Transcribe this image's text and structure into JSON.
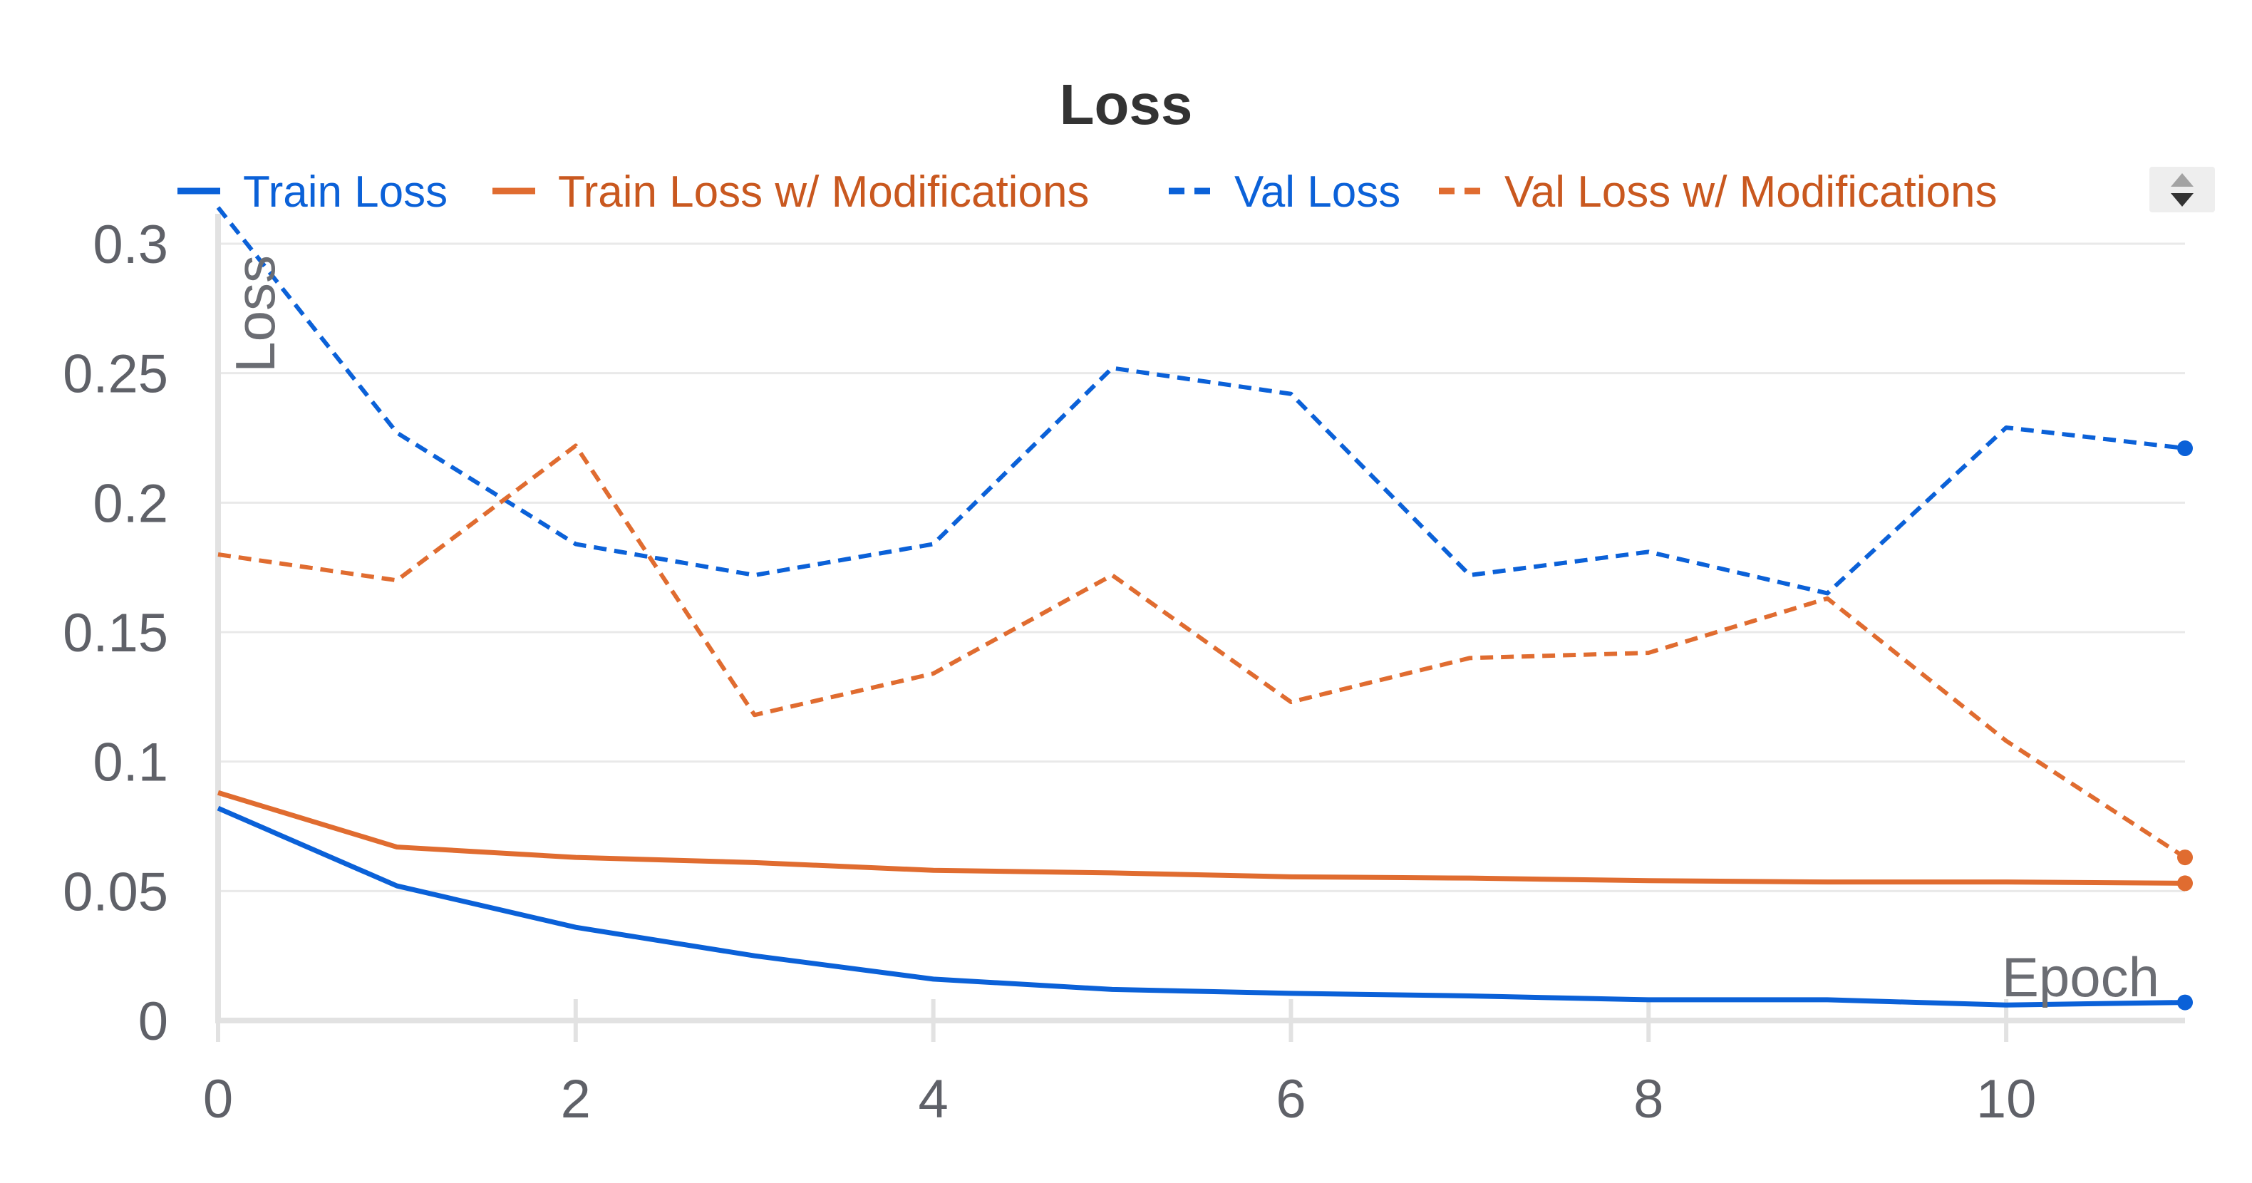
{
  "chart_data": {
    "type": "line",
    "title": "Loss",
    "xlabel": "Epoch",
    "ylabel": "Loss",
    "xlim": [
      0,
      11
    ],
    "ylim": [
      0,
      0.3
    ],
    "xticks": [
      0,
      2,
      4,
      6,
      8,
      10
    ],
    "yticks": [
      0,
      0.05,
      0.1,
      0.15,
      0.2,
      0.25,
      0.3
    ],
    "grid": true,
    "legend_position": "top",
    "x": [
      0,
      1,
      2,
      3,
      4,
      5,
      6,
      7,
      8,
      9,
      10,
      11
    ],
    "series": [
      {
        "name": "Train Loss",
        "color": "#0b61d8",
        "style": "solid",
        "values": [
          0.082,
          0.052,
          0.036,
          0.025,
          0.016,
          0.012,
          0.0105,
          0.0095,
          0.008,
          0.008,
          0.006,
          0.007
        ]
      },
      {
        "name": "Train Loss w/ Modifications",
        "color": "#e06c30",
        "style": "solid",
        "values": [
          0.088,
          0.067,
          0.063,
          0.061,
          0.058,
          0.057,
          0.0555,
          0.055,
          0.054,
          0.0535,
          0.0535,
          0.053
        ]
      },
      {
        "name": "Val Loss",
        "color": "#0b61d8",
        "style": "dashed",
        "values": [
          0.314,
          0.227,
          0.184,
          0.172,
          0.184,
          0.252,
          0.242,
          0.172,
          0.181,
          0.165,
          0.229,
          0.221
        ]
      },
      {
        "name": "Val Loss w/ Modifications",
        "color": "#e06c30",
        "style": "dashed",
        "values": [
          0.18,
          0.17,
          0.222,
          0.118,
          0.134,
          0.172,
          0.123,
          0.14,
          0.142,
          0.163,
          0.108,
          0.063
        ]
      }
    ]
  },
  "legend_toggle_icon": "sort-arrows-icon"
}
